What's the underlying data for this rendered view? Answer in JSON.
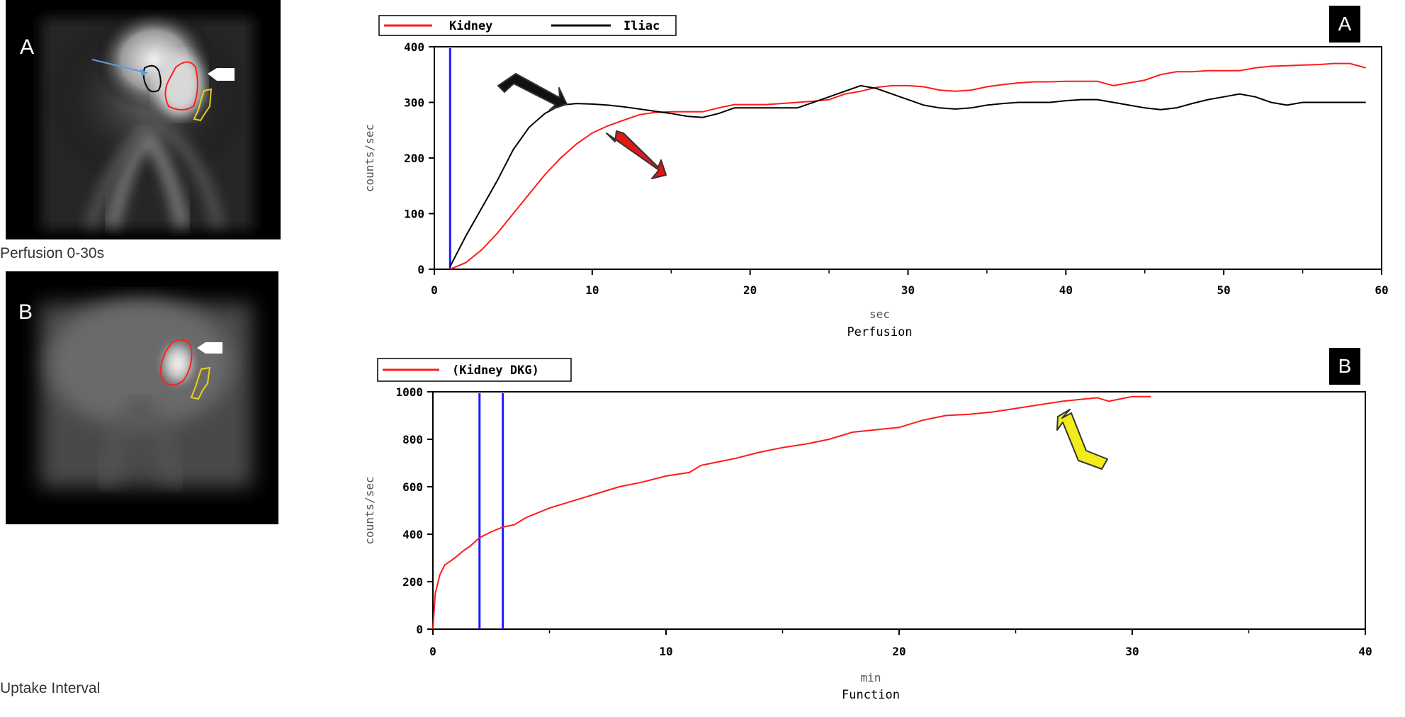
{
  "panels": [
    {
      "letter": "A",
      "scan_caption": "Perfusion 0-30s",
      "chart_letter": "A"
    },
    {
      "letter": "B",
      "scan_caption": "Uptake Interval",
      "chart_letter": "B"
    }
  ],
  "colors": {
    "kidney": "#ff1a1a",
    "iliac": "#000000",
    "marker": "#1a1aff",
    "arrow_black": "#111111",
    "arrow_red": "#e01818",
    "arrow_yellow": "#f2ec1c",
    "roi_yellow": "#e8d21a"
  },
  "chart_data": [
    {
      "type": "line",
      "title": "Perfusion",
      "xlabel": "sec",
      "ylabel": "counts/sec",
      "xlim": [
        0,
        60
      ],
      "ylim": [
        0,
        400
      ],
      "x_ticks": [
        0,
        10,
        20,
        30,
        40,
        50,
        60
      ],
      "y_ticks": [
        0,
        100,
        200,
        300,
        400
      ],
      "x_tick_labels": [
        "0",
        "10",
        "20",
        "30",
        "40",
        "50",
        "60"
      ],
      "y_tick_labels": [
        "0",
        "100",
        "200",
        "300",
        "400"
      ],
      "legend": "top-left",
      "marker_lines": [
        1
      ],
      "series": [
        {
          "name": "Kidney",
          "color": "#ff1a1a",
          "x": [
            1,
            2,
            3,
            4,
            5,
            6,
            7,
            8,
            9,
            10,
            11,
            12,
            13,
            14,
            15,
            16,
            17,
            18,
            19,
            20,
            21,
            22,
            23,
            24,
            25,
            26,
            27,
            28,
            29,
            30,
            31,
            32,
            33,
            34,
            35,
            36,
            37,
            38,
            39,
            40,
            41,
            42,
            43,
            44,
            45,
            46,
            47,
            48,
            49,
            50,
            51,
            52,
            53,
            54,
            55,
            56,
            57,
            58,
            59
          ],
          "y": [
            0,
            12,
            35,
            65,
            100,
            135,
            170,
            200,
            225,
            245,
            258,
            268,
            278,
            282,
            283,
            283,
            283,
            290,
            296,
            296,
            296,
            298,
            300,
            302,
            305,
            315,
            320,
            327,
            330,
            330,
            328,
            322,
            320,
            322,
            328,
            332,
            335,
            337,
            337,
            338,
            338,
            338,
            330,
            335,
            340,
            350,
            355,
            355,
            357,
            357,
            357,
            362,
            365,
            366,
            367,
            368,
            370,
            370,
            362
          ]
        },
        {
          "name": "Iliac",
          "color": "#000000",
          "x": [
            1,
            2,
            3,
            4,
            5,
            6,
            7,
            8,
            9,
            10,
            11,
            12,
            13,
            14,
            15,
            16,
            17,
            18,
            19,
            20,
            21,
            22,
            23,
            24,
            25,
            26,
            27,
            28,
            29,
            30,
            31,
            32,
            33,
            34,
            35,
            36,
            37,
            38,
            39,
            40,
            41,
            42,
            43,
            44,
            45,
            46,
            47,
            48,
            49,
            50,
            51,
            52,
            53,
            54,
            55,
            56,
            57,
            58,
            59
          ],
          "y": [
            5,
            60,
            110,
            160,
            215,
            255,
            280,
            295,
            298,
            297,
            295,
            292,
            288,
            284,
            280,
            275,
            273,
            280,
            290,
            290,
            290,
            290,
            290,
            300,
            310,
            320,
            330,
            325,
            315,
            305,
            295,
            290,
            288,
            290,
            295,
            298,
            300,
            300,
            300,
            303,
            305,
            305,
            300,
            295,
            290,
            287,
            290,
            298,
            305,
            310,
            315,
            310,
            300,
            295,
            300,
            300,
            300,
            300,
            300
          ]
        }
      ]
    },
    {
      "type": "line",
      "title": "Function",
      "xlabel": "min",
      "ylabel": "counts/sec",
      "xlim": [
        0,
        40
      ],
      "ylim": [
        0,
        1000
      ],
      "x_ticks": [
        0,
        10,
        20,
        30,
        40
      ],
      "y_ticks": [
        0,
        200,
        400,
        600,
        800,
        1000
      ],
      "x_tick_labels": [
        "0",
        "10",
        "20",
        "30",
        "40"
      ],
      "y_tick_labels": [
        "0",
        "200",
        "400",
        "600",
        "800",
        "1000"
      ],
      "legend": "top-left",
      "marker_lines": [
        2,
        3
      ],
      "series": [
        {
          "name": "(Kidney DKG)",
          "color": "#ff1a1a",
          "x": [
            0,
            0.1,
            0.3,
            0.5,
            0.8,
            1.0,
            1.3,
            1.6,
            2.0,
            2.5,
            3.0,
            3.5,
            4.0,
            5.0,
            6.0,
            7.0,
            8.0,
            9.0,
            10.0,
            11.0,
            11.5,
            12.0,
            13.0,
            14.0,
            15.0,
            16.0,
            17.0,
            18.0,
            19.0,
            20.0,
            21.0,
            22.0,
            23.0,
            24.0,
            25.0,
            26.0,
            27.0,
            28.0,
            28.5,
            29.0,
            29.5,
            30.0,
            30.8
          ],
          "y": [
            0,
            150,
            230,
            270,
            290,
            305,
            330,
            350,
            385,
            410,
            430,
            440,
            470,
            510,
            540,
            570,
            600,
            620,
            645,
            660,
            690,
            700,
            720,
            745,
            765,
            780,
            800,
            830,
            840,
            850,
            880,
            900,
            905,
            915,
            930,
            945,
            960,
            970,
            975,
            960,
            970,
            980,
            980
          ]
        }
      ]
    }
  ]
}
